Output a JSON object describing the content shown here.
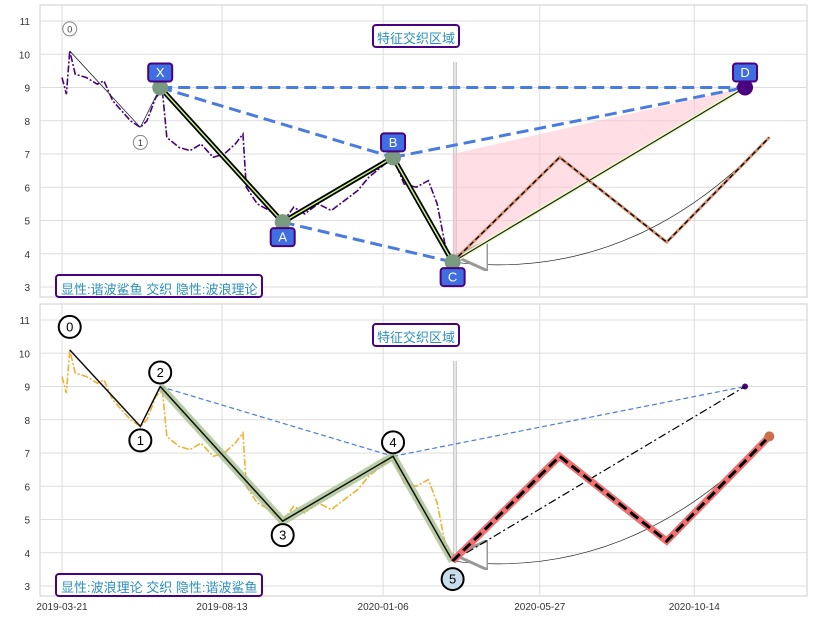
{
  "chart_data": [
    {
      "type": "line",
      "panel": "top",
      "ylim": [
        2.8,
        11.5
      ],
      "yticks": [
        3,
        4,
        5,
        6,
        7,
        8,
        9,
        10,
        11
      ],
      "grid": true,
      "annotation_title": "特征交织区域",
      "legend_text": "显性:谐波鲨鱼 交织 隐性:波浪理论",
      "price_color": "#4b0082",
      "pattern_points": [
        {
          "label": "X",
          "date": "2019-06-18",
          "value": 9.0
        },
        {
          "label": "A",
          "date": "2019-10-07",
          "value": 4.95
        },
        {
          "label": "B",
          "date": "2020-01-15",
          "value": 6.9
        },
        {
          "label": "C",
          "date": "2020-03-09",
          "value": 3.75
        },
        {
          "label": "D",
          "date": "2020-11-29",
          "value": 9.0
        }
      ],
      "wave_points": [
        {
          "label": "0",
          "date": "2019-03-28",
          "value": 10.1
        },
        {
          "label": "1",
          "date": "2019-05-31",
          "value": 7.8
        }
      ]
    },
    {
      "type": "line",
      "panel": "bottom",
      "ylim": [
        2.8,
        11.5
      ],
      "yticks": [
        3,
        4,
        5,
        6,
        7,
        8,
        9,
        10,
        11
      ],
      "grid": true,
      "annotation_title": "特征交织区域",
      "legend_text": "显性:波浪理论 交织 隐性:谐波鲨鱼",
      "price_color": "#f0b030",
      "wave_points": [
        {
          "label": "0",
          "date": "2019-03-28",
          "value": 10.1
        },
        {
          "label": "1",
          "date": "2019-05-31",
          "value": 7.8
        },
        {
          "label": "2",
          "date": "2019-06-18",
          "value": 9.0
        },
        {
          "label": "3",
          "date": "2019-10-07",
          "value": 4.95
        },
        {
          "label": "4",
          "date": "2020-01-15",
          "value": 6.9
        },
        {
          "label": "5",
          "date": "2020-03-09",
          "value": 3.75
        }
      ]
    }
  ],
  "shared": {
    "xticks": [
      "2019-03-21",
      "2019-08-13",
      "2020-01-06",
      "2020-05-27",
      "2020-10-14"
    ],
    "projection": [
      {
        "date": "2020-03-09",
        "value": 3.75
      },
      {
        "date": "2020-06-14",
        "value": 6.9
      },
      {
        "date": "2020-09-19",
        "value": 4.35
      },
      {
        "date": "2020-12-21",
        "value": 7.5
      }
    ],
    "price": [
      [
        "2019-03-21",
        9.3
      ],
      [
        "2019-03-25",
        8.8
      ],
      [
        "2019-03-28",
        10.1
      ],
      [
        "2019-04-02",
        9.4
      ],
      [
        "2019-04-12",
        9.3
      ],
      [
        "2019-04-22",
        9.1
      ],
      [
        "2019-04-28",
        9.2
      ],
      [
        "2019-05-06",
        8.6
      ],
      [
        "2019-05-14",
        8.3
      ],
      [
        "2019-05-22",
        8.0
      ],
      [
        "2019-05-31",
        7.8
      ],
      [
        "2019-06-06",
        8.0
      ],
      [
        "2019-06-14",
        8.7
      ],
      [
        "2019-06-20",
        8.9
      ],
      [
        "2019-06-24",
        7.5
      ],
      [
        "2019-07-05",
        7.2
      ],
      [
        "2019-07-15",
        7.1
      ],
      [
        "2019-07-25",
        7.3
      ],
      [
        "2019-08-05",
        6.9
      ],
      [
        "2019-08-15",
        7.0
      ],
      [
        "2019-08-25",
        7.3
      ],
      [
        "2019-09-01",
        7.6
      ],
      [
        "2019-09-04",
        6.0
      ],
      [
        "2019-09-14",
        5.5
      ],
      [
        "2019-09-25",
        5.3
      ],
      [
        "2019-10-07",
        4.95
      ],
      [
        "2019-10-17",
        5.4
      ],
      [
        "2019-10-27",
        5.2
      ],
      [
        "2019-11-08",
        5.5
      ],
      [
        "2019-11-20",
        5.3
      ],
      [
        "2019-12-02",
        5.6
      ],
      [
        "2019-12-14",
        5.9
      ],
      [
        "2019-12-24",
        6.3
      ],
      [
        "2020-01-04",
        6.6
      ],
      [
        "2020-01-15",
        6.9
      ],
      [
        "2020-01-25",
        6.1
      ],
      [
        "2020-02-05",
        6.0
      ],
      [
        "2020-02-16",
        6.2
      ],
      [
        "2020-02-24",
        5.5
      ],
      [
        "2020-03-02",
        4.3
      ],
      [
        "2020-03-09",
        3.75
      ]
    ]
  }
}
